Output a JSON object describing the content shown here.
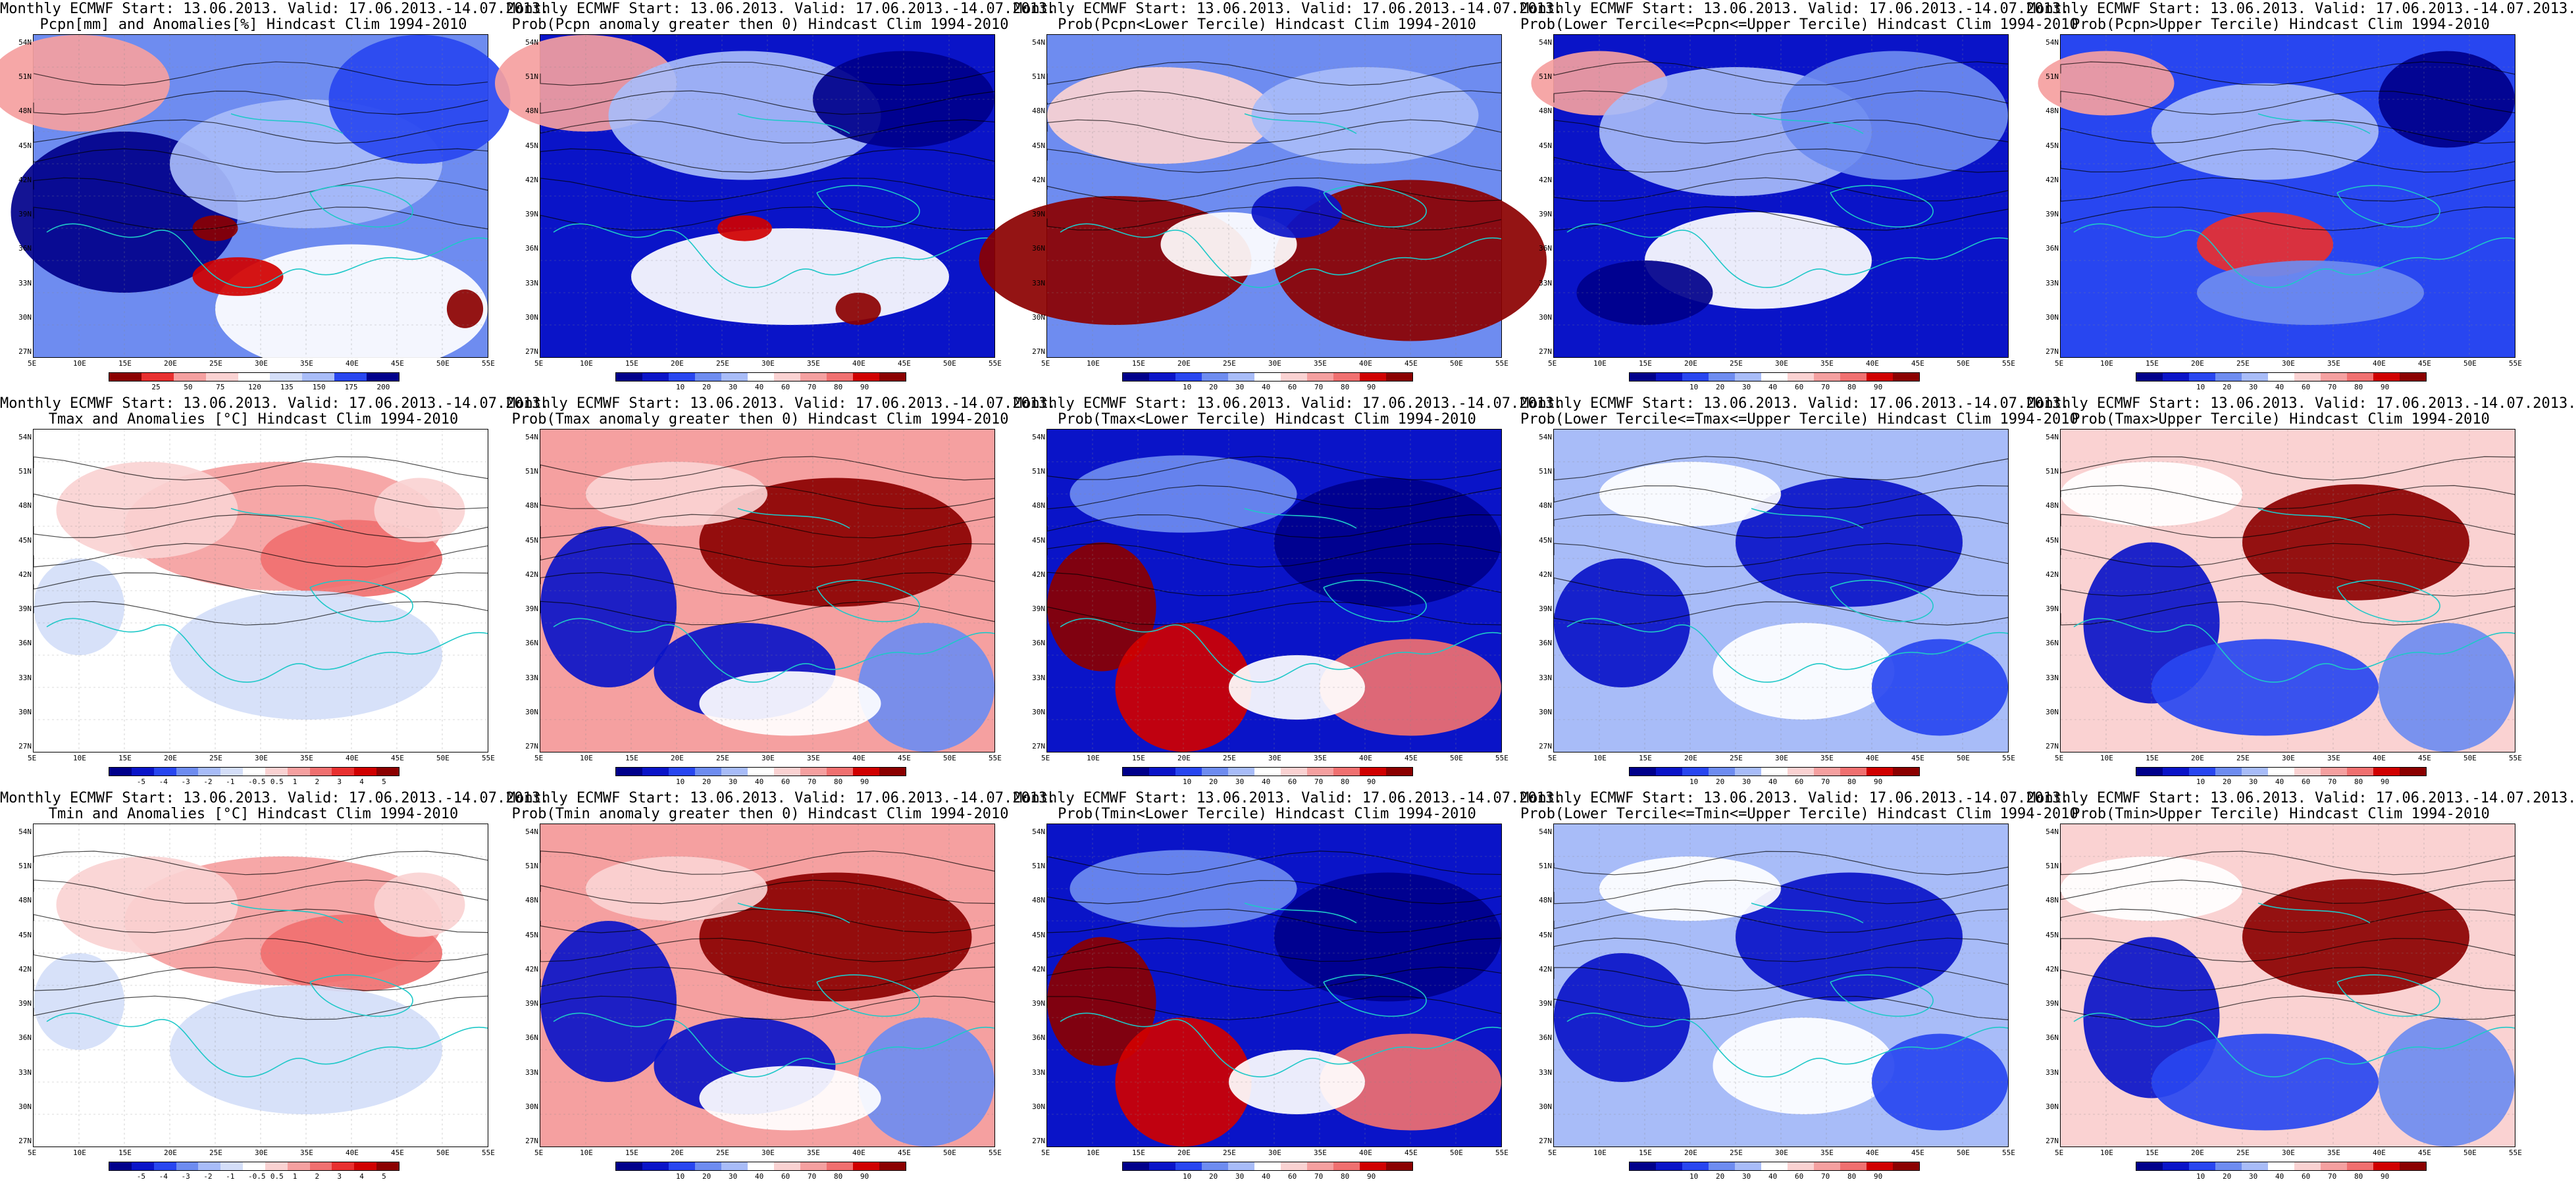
{
  "palette": {
    "blue9": "#00008b",
    "blue8": "#0a14c8",
    "blue7": "#2846f0",
    "blue6": "#6e8cf0",
    "blue5": "#a8bcf8",
    "blue4": "#d4def8",
    "white": "#ffffff",
    "red4": "#fad2d2",
    "red5": "#f5a0a0",
    "red6": "#f07070",
    "red7": "#e83030",
    "red8": "#d00000",
    "red9": "#8b0000",
    "coast": "#1ec8c8",
    "contour": "#000000"
  },
  "lat_labels": [
    "54N",
    "51N",
    "48N",
    "45N",
    "42N",
    "39N",
    "36N",
    "33N",
    "30N",
    "27N"
  ],
  "lon_labels": [
    "5E",
    "10E",
    "15E",
    "20E",
    "25E",
    "30E",
    "35E",
    "40E",
    "45E",
    "50E",
    "55E"
  ],
  "colorbars": {
    "pcpn": [
      "25",
      "50",
      "75",
      "120",
      "135",
      "150",
      "175",
      "200"
    ],
    "prob": [
      "10",
      "20",
      "30",
      "40",
      "60",
      "70",
      "80",
      "90"
    ],
    "temp": [
      "-5",
      "-4",
      "-3",
      "-2",
      "-1",
      "-0.5",
      "0.5",
      "1",
      "2",
      "3",
      "4",
      "5"
    ]
  },
  "panels": [
    {
      "id": "r1c1",
      "title1": "Monthly ECMWF Start: 13.06.2013. Valid: 17.06.2013.-14.07.2013.",
      "title2": "Pcpn[mm] and Anomalies[%] Hindcast Clim 1994-2010",
      "scheme": "pcpn-anom",
      "bar": "pcpn"
    },
    {
      "id": "r1c2",
      "title1": "Monthly ECMWF Start: 13.06.2013. Valid: 17.06.2013.-14.07.2013.",
      "title2": "Prob(Pcpn anomaly greater then 0) Hindcast Clim 1994-2010",
      "scheme": "pcpn-gt0",
      "bar": "prob"
    },
    {
      "id": "r1c3",
      "title1": "Monthly ECMWF Start: 13.06.2013. Valid: 17.06.2013.-14.07.2013.",
      "title2": "Prob(Pcpn<Lower Tercile) Hindcast Clim 1994-2010",
      "scheme": "pcpn-lower",
      "bar": "prob"
    },
    {
      "id": "r1c4",
      "title1": "Monthly ECMWF Start: 13.06.2013. Valid: 17.06.2013.-14.07.2013.",
      "title2": "Prob(Lower Tercile<=Pcpn<=Upper Tercile) Hindcast Clim 1994-2010",
      "scheme": "pcpn-mid",
      "bar": "prob"
    },
    {
      "id": "r1c5",
      "title1": "Monthly ECMWF Start: 13.06.2013. Valid: 17.06.2013.-14.07.2013.",
      "title2": "Prob(Pcpn>Upper Tercile) Hindcast Clim 1994-2010",
      "scheme": "pcpn-upper",
      "bar": "prob"
    },
    {
      "id": "r2c1",
      "title1": "Monthly ECMWF Start: 13.06.2013. Valid: 17.06.2013.-14.07.2013.",
      "title2": "Tmax and Anomalies [°C] Hindcast Clim 1994-2010",
      "scheme": "temp-anom",
      "bar": "temp"
    },
    {
      "id": "r2c2",
      "title1": "Monthly ECMWF Start: 13.06.2013. Valid: 17.06.2013.-14.07.2013.",
      "title2": "Prob(Tmax anomaly greater then 0) Hindcast Clim 1994-2010",
      "scheme": "temp-gt0",
      "bar": "prob"
    },
    {
      "id": "r2c3",
      "title1": "Monthly ECMWF Start: 13.06.2013. Valid: 17.06.2013.-14.07.2013.",
      "title2": "Prob(Tmax<Lower Tercile) Hindcast Clim 1994-2010",
      "scheme": "temp-lower",
      "bar": "prob"
    },
    {
      "id": "r2c4",
      "title1": "Monthly ECMWF Start: 13.06.2013. Valid: 17.06.2013.-14.07.2013.",
      "title2": "Prob(Lower Tercile<=Tmax<=Upper Tercile) Hindcast Clim 1994-2010",
      "scheme": "temp-mid",
      "bar": "prob"
    },
    {
      "id": "r2c5",
      "title1": "Monthly ECMWF Start: 13.06.2013. Valid: 17.06.2013.-14.07.2013.",
      "title2": "Prob(Tmax>Upper Tercile) Hindcast Clim 1994-2010",
      "scheme": "temp-upper",
      "bar": "prob"
    },
    {
      "id": "r3c1",
      "title1": "Monthly ECMWF Start: 13.06.2013. Valid: 17.06.2013.-14.07.2013.",
      "title2": "Tmin and Anomalies [°C] Hindcast Clim 1994-2010",
      "scheme": "temp-anom",
      "bar": "temp"
    },
    {
      "id": "r3c2",
      "title1": "Monthly ECMWF Start: 13.06.2013. Valid: 17.06.2013.-14.07.2013.",
      "title2": "Prob(Tmin anomaly greater then 0) Hindcast Clim 1994-2010",
      "scheme": "temp-gt0",
      "bar": "prob"
    },
    {
      "id": "r3c3",
      "title1": "Monthly ECMWF Start: 13.06.2013. Valid: 17.06.2013.-14.07.2013.",
      "title2": "Prob(Tmin<Lower Tercile) Hindcast Clim 1994-2010",
      "scheme": "temp-lower",
      "bar": "prob"
    },
    {
      "id": "r3c4",
      "title1": "Monthly ECMWF Start: 13.06.2013. Valid: 17.06.2013.-14.07.2013.",
      "title2": "Prob(Lower Tercile<=Tmin<=Upper Tercile) Hindcast Clim 1994-2010",
      "scheme": "temp-mid",
      "bar": "prob"
    },
    {
      "id": "r3c5",
      "title1": "Monthly ECMWF Start: 13.06.2013. Valid: 17.06.2013.-14.07.2013.",
      "title2": "Prob(Tmin>Upper Tercile) Hindcast Clim 1994-2010",
      "scheme": "temp-upper",
      "bar": "prob"
    }
  ]
}
